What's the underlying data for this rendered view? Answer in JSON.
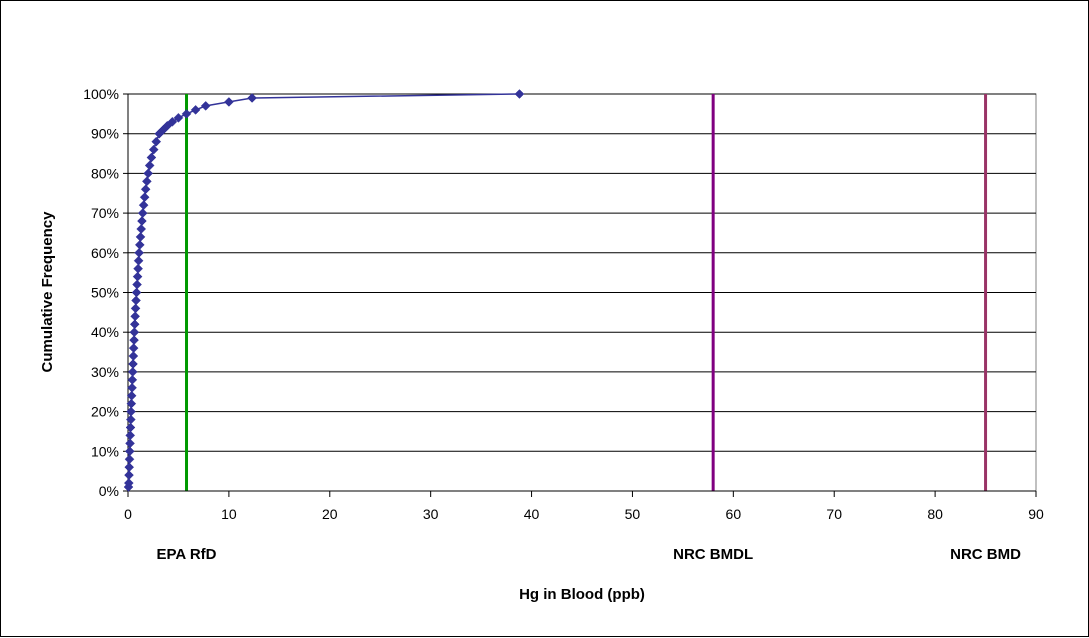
{
  "chart_data": {
    "type": "scatter",
    "title": "",
    "xlabel": "Hg in Blood (ppb)",
    "ylabel": "Cumulative Frequency",
    "xlim": [
      0,
      90
    ],
    "ylim": [
      0,
      1
    ],
    "xticks": [
      "0",
      "10",
      "20",
      "30",
      "40",
      "50",
      "60",
      "70",
      "80",
      "90"
    ],
    "yticks": [
      "0%",
      "10%",
      "20%",
      "30%",
      "40%",
      "50%",
      "60%",
      "70%",
      "80%",
      "90%",
      "100%"
    ],
    "grid": "horizontal",
    "legend": "none",
    "series": [
      {
        "color": "#333399",
        "marker": "diamond",
        "points": [
          [
            0.05,
            0.01
          ],
          [
            0.08,
            0.02
          ],
          [
            0.1,
            0.04
          ],
          [
            0.12,
            0.06
          ],
          [
            0.15,
            0.08
          ],
          [
            0.18,
            0.1
          ],
          [
            0.2,
            0.12
          ],
          [
            0.22,
            0.14
          ],
          [
            0.25,
            0.16
          ],
          [
            0.28,
            0.18
          ],
          [
            0.3,
            0.2
          ],
          [
            0.33,
            0.22
          ],
          [
            0.36,
            0.24
          ],
          [
            0.4,
            0.26
          ],
          [
            0.43,
            0.28
          ],
          [
            0.47,
            0.3
          ],
          [
            0.5,
            0.32
          ],
          [
            0.53,
            0.34
          ],
          [
            0.56,
            0.36
          ],
          [
            0.6,
            0.38
          ],
          [
            0.63,
            0.4
          ],
          [
            0.67,
            0.42
          ],
          [
            0.71,
            0.44
          ],
          [
            0.75,
            0.46
          ],
          [
            0.8,
            0.48
          ],
          [
            0.85,
            0.5
          ],
          [
            0.9,
            0.52
          ],
          [
            0.95,
            0.54
          ],
          [
            1.0,
            0.56
          ],
          [
            1.05,
            0.58
          ],
          [
            1.1,
            0.6
          ],
          [
            1.17,
            0.62
          ],
          [
            1.24,
            0.64
          ],
          [
            1.31,
            0.66
          ],
          [
            1.38,
            0.68
          ],
          [
            1.46,
            0.7
          ],
          [
            1.55,
            0.72
          ],
          [
            1.65,
            0.74
          ],
          [
            1.75,
            0.76
          ],
          [
            1.87,
            0.78
          ],
          [
            2.0,
            0.8
          ],
          [
            2.15,
            0.82
          ],
          [
            2.32,
            0.84
          ],
          [
            2.55,
            0.86
          ],
          [
            2.8,
            0.88
          ],
          [
            3.1,
            0.9
          ],
          [
            3.5,
            0.91
          ],
          [
            3.9,
            0.92
          ],
          [
            4.4,
            0.93
          ],
          [
            5.0,
            0.94
          ],
          [
            5.8,
            0.95
          ],
          [
            6.7,
            0.96
          ],
          [
            7.7,
            0.97
          ],
          [
            10.0,
            0.98
          ],
          [
            12.3,
            0.99
          ],
          [
            38.8,
            1.0
          ]
        ]
      }
    ],
    "reference_lines": [
      {
        "label": "EPA RfD",
        "x": 5.8,
        "color": "#009900"
      },
      {
        "label": "NRC BMDL",
        "x": 58,
        "color": "#800080"
      },
      {
        "label": "NRC BMD",
        "x": 85,
        "color": "#993366"
      }
    ]
  }
}
